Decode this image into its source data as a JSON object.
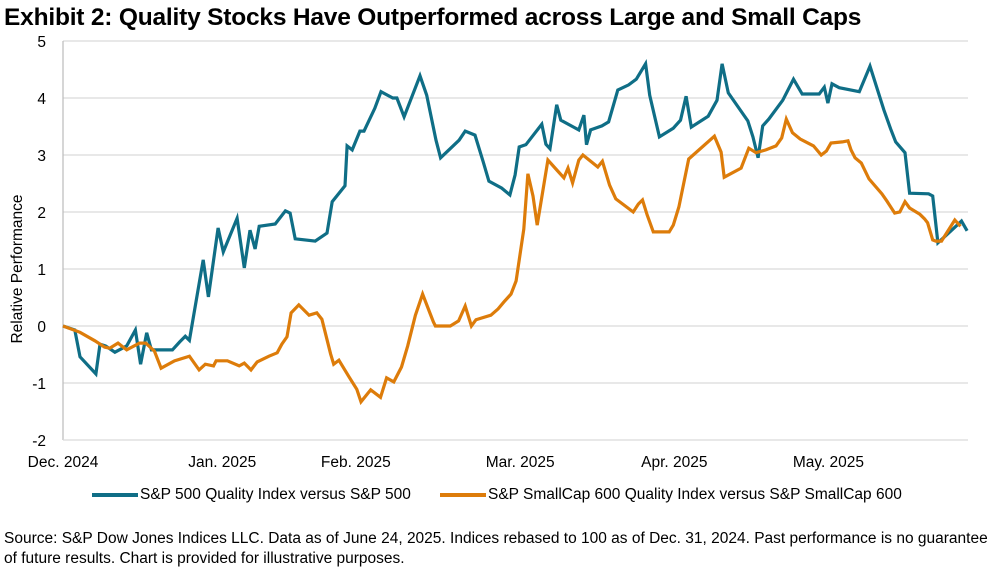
{
  "title": "Exhibit 2: Quality Stocks Have Outperformed across Large and Small Caps",
  "legend": [
    {
      "name": "S&P 500 Quality Index versus S&P 500",
      "color": "#0f6e86"
    },
    {
      "name": "S&P SmallCap 600 Quality Index versus S&P SmallCap 600",
      "color": "#dd7c0a"
    }
  ],
  "source": "Source: S&P Dow Jones Indices LLC. Data as of June 24, 2025. Indices rebased to 100 as of Dec. 31, 2024. Past performance is no guarantee of future results. Chart is provided for illustrative purposes.",
  "chart_data": {
    "type": "line",
    "title": "Exhibit 2: Quality Stocks Have Outperformed across Large and Small Caps",
    "xlabel": "",
    "ylabel": "Relative Performance",
    "ylim": [
      -2,
      5
    ],
    "yticks": [
      "-2",
      "-1",
      "0",
      "1",
      "2",
      "3",
      "4",
      "5"
    ],
    "xlim_days": [
      0,
      175
    ],
    "xticks": [
      {
        "label": "Dec. 2024",
        "day": 0
      },
      {
        "label": "Jan. 2025",
        "day": 31
      },
      {
        "label": "Feb. 2025",
        "day": 57
      },
      {
        "label": "Mar. 2025",
        "day": 89
      },
      {
        "label": "Apr. 2025",
        "day": 119
      },
      {
        "label": "May. 2025",
        "day": 149
      }
    ],
    "grid": "horizontal",
    "legend_position": "bottom",
    "x_unit": "days since Dec. 31, 2024",
    "series": [
      {
        "name": "S&P 500 Quality Index versus S&P 500",
        "color": "#0f6e86",
        "points": [
          [
            0,
            0.0
          ],
          [
            2.3,
            -0.07
          ],
          [
            3.3,
            -0.54
          ],
          [
            6.4,
            -0.84
          ],
          [
            7.2,
            -0.32
          ],
          [
            8.3,
            -0.35
          ],
          [
            10.1,
            -0.46
          ],
          [
            12.4,
            -0.35
          ],
          [
            14.1,
            -0.07
          ],
          [
            15.1,
            -0.67
          ],
          [
            16.3,
            -0.12
          ],
          [
            17.2,
            -0.42
          ],
          [
            21.3,
            -0.42
          ],
          [
            22.7,
            -0.28
          ],
          [
            23.8,
            -0.18
          ],
          [
            24.6,
            -0.25
          ],
          [
            27.3,
            1.16
          ],
          [
            28.3,
            0.51
          ],
          [
            30.2,
            1.72
          ],
          [
            31.2,
            1.3
          ],
          [
            33.9,
            1.89
          ],
          [
            35.3,
            1.02
          ],
          [
            36.4,
            1.68
          ],
          [
            37.4,
            1.35
          ],
          [
            38.2,
            1.75
          ],
          [
            41.3,
            1.79
          ],
          [
            43.3,
            2.02
          ],
          [
            44.2,
            1.98
          ],
          [
            45.2,
            1.53
          ],
          [
            49.1,
            1.49
          ],
          [
            51.4,
            1.63
          ],
          [
            52.4,
            2.18
          ],
          [
            54.9,
            2.46
          ],
          [
            55.3,
            3.16
          ],
          [
            56.3,
            3.09
          ],
          [
            57.8,
            3.42
          ],
          [
            58.6,
            3.42
          ],
          [
            60.7,
            3.82
          ],
          [
            61.9,
            4.11
          ],
          [
            64.2,
            4.0
          ],
          [
            65.0,
            4.0
          ],
          [
            66.4,
            3.67
          ],
          [
            69.5,
            4.39
          ],
          [
            70.8,
            4.05
          ],
          [
            72.6,
            3.26
          ],
          [
            73.5,
            2.95
          ],
          [
            77.1,
            3.26
          ],
          [
            78.3,
            3.42
          ],
          [
            80.2,
            3.35
          ],
          [
            81.8,
            2.88
          ],
          [
            82.9,
            2.54
          ],
          [
            85.4,
            2.42
          ],
          [
            87.0,
            2.3
          ],
          [
            88.0,
            2.65
          ],
          [
            88.8,
            3.14
          ],
          [
            90.1,
            3.18
          ],
          [
            91.3,
            3.32
          ],
          [
            93.2,
            3.54
          ],
          [
            94.0,
            3.19
          ],
          [
            94.8,
            3.11
          ],
          [
            96.1,
            3.88
          ],
          [
            96.9,
            3.61
          ],
          [
            99.4,
            3.49
          ],
          [
            100.4,
            3.44
          ],
          [
            101.4,
            3.7
          ],
          [
            101.9,
            3.18
          ],
          [
            102.7,
            3.44
          ],
          [
            104.9,
            3.51
          ],
          [
            106.2,
            3.58
          ],
          [
            108.0,
            4.14
          ],
          [
            110.1,
            4.23
          ],
          [
            111.6,
            4.33
          ],
          [
            113.4,
            4.6
          ],
          [
            114.2,
            4.05
          ],
          [
            116.1,
            3.32
          ],
          [
            118.8,
            3.47
          ],
          [
            120.2,
            3.61
          ],
          [
            121.3,
            4.03
          ],
          [
            122.3,
            3.49
          ],
          [
            125.6,
            3.68
          ],
          [
            127.3,
            3.96
          ],
          [
            128.3,
            4.6
          ],
          [
            129.5,
            4.09
          ],
          [
            133.3,
            3.6
          ],
          [
            134.3,
            3.32
          ],
          [
            135.3,
            2.95
          ],
          [
            136.2,
            3.51
          ],
          [
            137.4,
            3.63
          ],
          [
            140.1,
            3.96
          ],
          [
            142.2,
            4.33
          ],
          [
            143.9,
            4.07
          ],
          [
            147.2,
            4.07
          ],
          [
            148.2,
            4.19
          ],
          [
            148.9,
            3.91
          ],
          [
            149.7,
            4.25
          ],
          [
            151.1,
            4.18
          ],
          [
            155.0,
            4.11
          ],
          [
            157.1,
            4.56
          ],
          [
            159.8,
            3.79
          ],
          [
            161.1,
            3.46
          ],
          [
            162.1,
            3.23
          ],
          [
            163.9,
            3.04
          ],
          [
            164.8,
            2.33
          ],
          [
            168.5,
            2.32
          ],
          [
            169.3,
            2.28
          ],
          [
            170.3,
            1.46
          ],
          [
            172.4,
            1.63
          ],
          [
            174.9,
            1.84
          ],
          [
            176.0,
            1.67
          ]
        ]
      },
      {
        "name": "S&P SmallCap 600 Quality Index versus S&P SmallCap 600",
        "color": "#dd7c0a",
        "points": [
          [
            0,
            0.0
          ],
          [
            3.3,
            -0.11
          ],
          [
            6.2,
            -0.26
          ],
          [
            8.1,
            -0.37
          ],
          [
            9.1,
            -0.39
          ],
          [
            10.7,
            -0.3
          ],
          [
            12.4,
            -0.42
          ],
          [
            14.9,
            -0.3
          ],
          [
            16.1,
            -0.3
          ],
          [
            17.8,
            -0.44
          ],
          [
            19.1,
            -0.74
          ],
          [
            21.7,
            -0.61
          ],
          [
            24.6,
            -0.53
          ],
          [
            26.5,
            -0.77
          ],
          [
            27.7,
            -0.67
          ],
          [
            29.3,
            -0.7
          ],
          [
            29.8,
            -0.61
          ],
          [
            32.0,
            -0.61
          ],
          [
            34.3,
            -0.7
          ],
          [
            35.3,
            -0.65
          ],
          [
            36.6,
            -0.77
          ],
          [
            37.8,
            -0.63
          ],
          [
            40.1,
            -0.53
          ],
          [
            41.7,
            -0.47
          ],
          [
            42.6,
            -0.32
          ],
          [
            43.6,
            -0.19
          ],
          [
            44.4,
            0.23
          ],
          [
            45.9,
            0.37
          ],
          [
            47.9,
            0.19
          ],
          [
            49.4,
            0.23
          ],
          [
            50.4,
            0.12
          ],
          [
            52.1,
            -0.49
          ],
          [
            52.7,
            -0.67
          ],
          [
            53.7,
            -0.6
          ],
          [
            55.6,
            -0.88
          ],
          [
            57.2,
            -1.11
          ],
          [
            58.0,
            -1.33
          ],
          [
            59.9,
            -1.12
          ],
          [
            61.8,
            -1.25
          ],
          [
            63.0,
            -0.91
          ],
          [
            64.4,
            -0.98
          ],
          [
            65.9,
            -0.72
          ],
          [
            67.1,
            -0.35
          ],
          [
            68.6,
            0.19
          ],
          [
            70.0,
            0.56
          ],
          [
            71.5,
            0.21
          ],
          [
            72.1,
            0.07
          ],
          [
            72.5,
            0.0
          ],
          [
            75.4,
            0.0
          ],
          [
            77.0,
            0.09
          ],
          [
            78.3,
            0.35
          ],
          [
            79.5,
            0.0
          ],
          [
            80.4,
            0.11
          ],
          [
            83.3,
            0.19
          ],
          [
            84.7,
            0.3
          ],
          [
            85.8,
            0.42
          ],
          [
            87.2,
            0.56
          ],
          [
            88.2,
            0.79
          ],
          [
            89.7,
            1.7
          ],
          [
            90.5,
            2.67
          ],
          [
            91.5,
            2.28
          ],
          [
            92.3,
            1.77
          ],
          [
            94.4,
            2.91
          ],
          [
            96.3,
            2.72
          ],
          [
            97.5,
            2.6
          ],
          [
            98.3,
            2.77
          ],
          [
            99.2,
            2.51
          ],
          [
            100.4,
            2.91
          ],
          [
            101.2,
            3.0
          ],
          [
            104.1,
            2.79
          ],
          [
            105.0,
            2.89
          ],
          [
            106.4,
            2.47
          ],
          [
            107.6,
            2.23
          ],
          [
            111.0,
            2.0
          ],
          [
            112.0,
            2.14
          ],
          [
            112.8,
            2.21
          ],
          [
            113.7,
            1.95
          ],
          [
            114.9,
            1.65
          ],
          [
            118.0,
            1.65
          ],
          [
            118.8,
            1.77
          ],
          [
            119.9,
            2.09
          ],
          [
            121.8,
            2.93
          ],
          [
            126.8,
            3.33
          ],
          [
            128.1,
            3.05
          ],
          [
            128.7,
            2.61
          ],
          [
            132.0,
            2.77
          ],
          [
            133.5,
            3.12
          ],
          [
            134.9,
            3.04
          ],
          [
            136.8,
            3.09
          ],
          [
            138.8,
            3.16
          ],
          [
            139.9,
            3.3
          ],
          [
            140.8,
            3.63
          ],
          [
            142.0,
            3.39
          ],
          [
            143.5,
            3.28
          ],
          [
            146.1,
            3.16
          ],
          [
            147.6,
            3.0
          ],
          [
            148.6,
            3.07
          ],
          [
            149.5,
            3.21
          ],
          [
            151.7,
            3.23
          ],
          [
            152.8,
            3.25
          ],
          [
            153.4,
            3.09
          ],
          [
            154.2,
            2.95
          ],
          [
            155.4,
            2.86
          ],
          [
            156.9,
            2.58
          ],
          [
            159.4,
            2.32
          ],
          [
            160.4,
            2.19
          ],
          [
            161.9,
            1.98
          ],
          [
            162.9,
            2.0
          ],
          [
            163.9,
            2.18
          ],
          [
            164.8,
            2.07
          ],
          [
            166.8,
            1.96
          ],
          [
            167.7,
            1.88
          ],
          [
            168.3,
            1.81
          ],
          [
            169.3,
            1.51
          ],
          [
            169.9,
            1.49
          ],
          [
            171.0,
            1.49
          ],
          [
            173.6,
            1.86
          ],
          [
            174.7,
            1.75
          ]
        ]
      }
    ]
  }
}
